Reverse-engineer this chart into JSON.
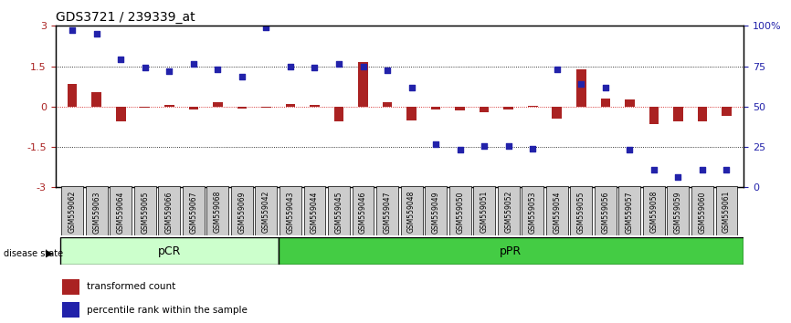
{
  "title": "GDS3721 / 239339_at",
  "samples": [
    "GSM559062",
    "GSM559063",
    "GSM559064",
    "GSM559065",
    "GSM559066",
    "GSM559067",
    "GSM559068",
    "GSM559069",
    "GSM559042",
    "GSM559043",
    "GSM559044",
    "GSM559045",
    "GSM559046",
    "GSM559047",
    "GSM559048",
    "GSM559049",
    "GSM559050",
    "GSM559051",
    "GSM559052",
    "GSM559053",
    "GSM559054",
    "GSM559055",
    "GSM559056",
    "GSM559057",
    "GSM559058",
    "GSM559059",
    "GSM559060",
    "GSM559061"
  ],
  "bar_values": [
    0.85,
    0.55,
    -0.55,
    -0.05,
    0.05,
    -0.1,
    0.18,
    -0.08,
    -0.05,
    0.1,
    0.05,
    -0.55,
    1.65,
    0.15,
    -0.5,
    -0.12,
    -0.15,
    -0.2,
    -0.1,
    0.02,
    -0.45,
    1.4,
    0.3,
    0.25,
    -0.65,
    -0.55,
    -0.55,
    -0.35
  ],
  "scatter_values": [
    2.85,
    2.7,
    1.75,
    1.45,
    1.3,
    1.6,
    1.4,
    1.1,
    2.95,
    1.5,
    1.45,
    1.6,
    1.5,
    1.35,
    0.7,
    -1.4,
    -1.6,
    -1.45,
    -1.45,
    -1.55,
    1.4,
    0.85,
    0.7,
    -1.6,
    -2.35,
    -2.6,
    -2.35,
    -2.35
  ],
  "pCR_count": 9,
  "pPR_count": 19,
  "bar_color": "#aa2222",
  "scatter_color": "#2222aa",
  "dotted_color": "#000000",
  "background_color": "#ffffff",
  "yticks_left": [
    -3,
    -1.5,
    0,
    1.5,
    3
  ],
  "yticks_right": [
    0,
    25,
    50,
    75,
    100
  ],
  "pCR_color": "#ccffcc",
  "pPR_color": "#44cc44",
  "label_box_color": "#cccccc"
}
